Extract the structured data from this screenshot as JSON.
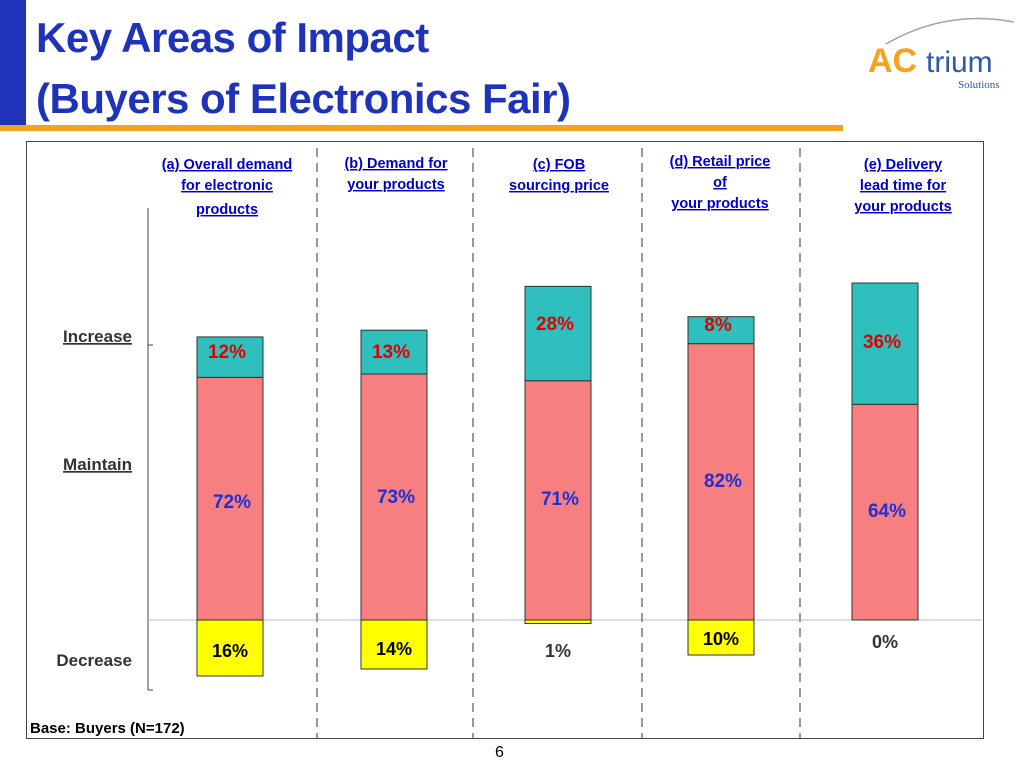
{
  "slide": {
    "title_line1": "Key Areas of Impact",
    "title_line2": "(Buyers of Electronics Fair)",
    "page_number": "6",
    "base_note": "Base: Buyers (N=172)"
  },
  "logo": {
    "text_ac": "AC",
    "text_trium": "trium",
    "text_solutions": "Solutions"
  },
  "colors": {
    "title": "#1f33b8",
    "accent_rule": "#f7a21b",
    "increase": "#2fbfbc",
    "maintain": "#f87f7f",
    "decrease": "#ffff00",
    "header_text": "#0000cc",
    "increase_label": "#e00000",
    "maintain_label": "#1f2fd6"
  },
  "chart_data": {
    "type": "bar",
    "stacked": true,
    "row_labels": [
      "Increase",
      "Maintain",
      "Decrease"
    ],
    "categories": [
      [
        "(a) Overall demand",
        "for electronic",
        "products"
      ],
      [
        "(b) Demand for",
        "your products"
      ],
      [
        "(c) FOB",
        "sourcing price"
      ],
      [
        "(d) Retail price",
        "of",
        "your products"
      ],
      [
        "(e) Delivery",
        "lead time for",
        "your products"
      ]
    ],
    "series": [
      {
        "name": "Increase",
        "values": [
          12,
          13,
          28,
          8,
          36
        ],
        "labels": [
          "12%",
          "13%",
          "28%",
          "8%",
          "36%"
        ]
      },
      {
        "name": "Maintain",
        "values": [
          72,
          73,
          71,
          82,
          64
        ],
        "labels": [
          "72%",
          "73%",
          "71%",
          "82%",
          "64%"
        ]
      },
      {
        "name": "Decrease",
        "values": [
          16,
          14,
          1,
          10,
          0
        ],
        "labels": [
          "16%",
          "14%",
          "1%",
          "10%",
          "0%"
        ]
      }
    ],
    "units": "%",
    "grid": false
  }
}
